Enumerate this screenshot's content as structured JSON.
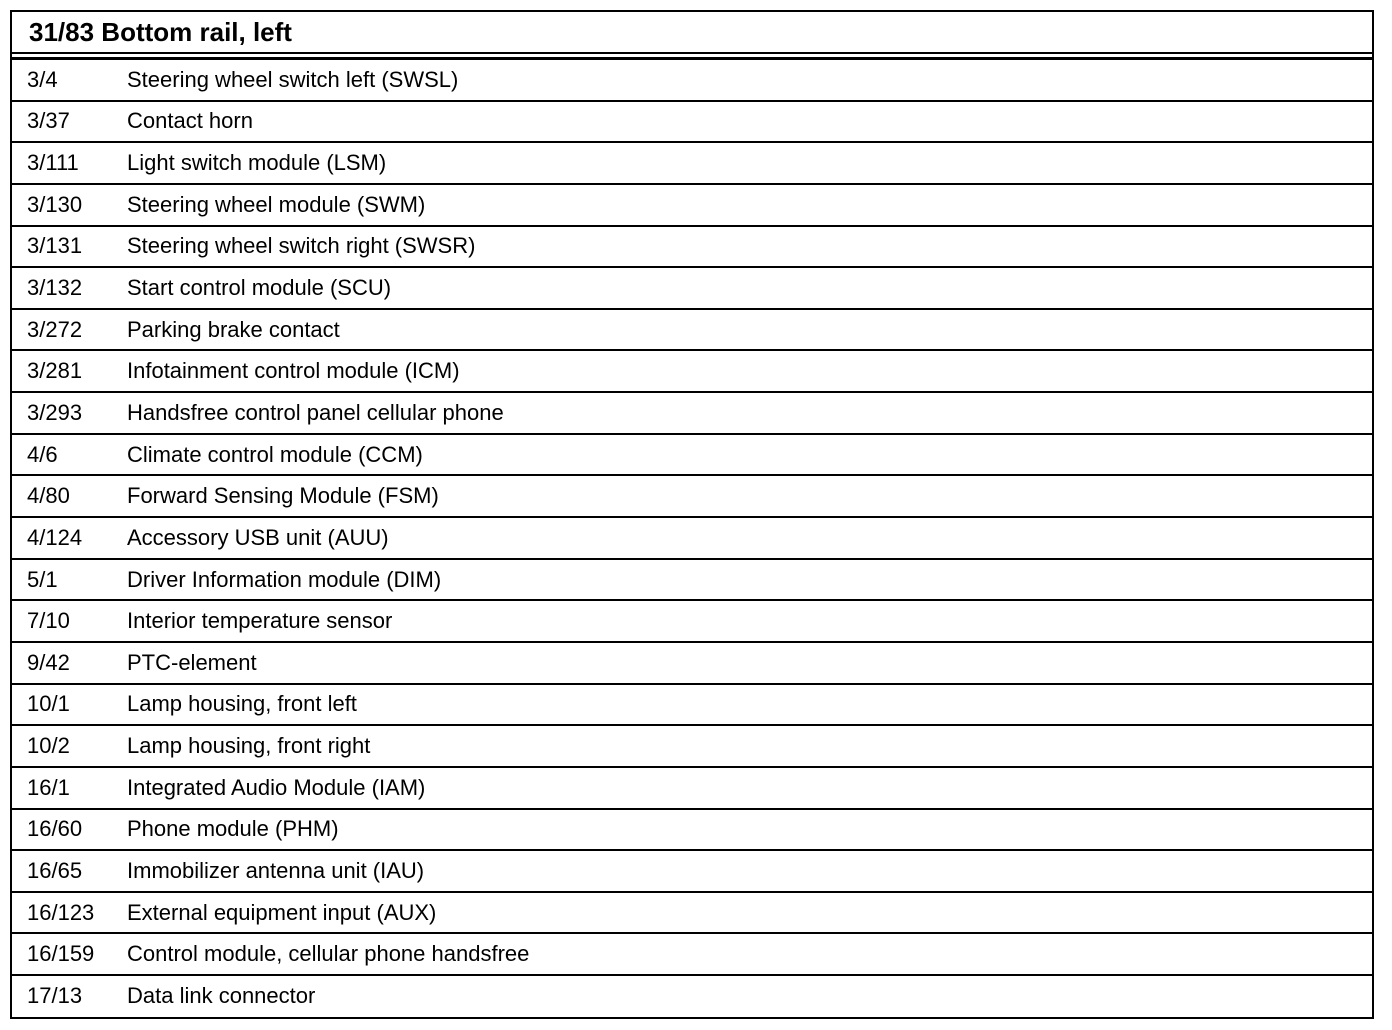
{
  "title": "31/83 Bottom rail, left",
  "rows": [
    {
      "code": "3/4",
      "description": "Steering wheel switch left (SWSL)"
    },
    {
      "code": "3/37",
      "description": "Contact horn"
    },
    {
      "code": "3/111",
      "description": "Light switch module (LSM)"
    },
    {
      "code": "3/130",
      "description": "Steering wheel module (SWM)"
    },
    {
      "code": "3/131",
      "description": "Steering wheel switch right (SWSR)"
    },
    {
      "code": "3/132",
      "description": "Start control module (SCU)"
    },
    {
      "code": "3/272",
      "description": "Parking brake contact"
    },
    {
      "code": "3/281",
      "description": "Infotainment control module (ICM)"
    },
    {
      "code": "3/293",
      "description": "Handsfree control panel cellular phone"
    },
    {
      "code": "4/6",
      "description": "Climate control module (CCM)"
    },
    {
      "code": "4/80",
      "description": "Forward Sensing Module (FSM)"
    },
    {
      "code": "4/124",
      "description": "Accessory USB unit (AUU)"
    },
    {
      "code": "5/1",
      "description": "Driver Information module (DIM)"
    },
    {
      "code": "7/10",
      "description": "Interior temperature sensor"
    },
    {
      "code": "9/42",
      "description": "PTC-element"
    },
    {
      "code": "10/1",
      "description": "Lamp housing, front left"
    },
    {
      "code": "10/2",
      "description": "Lamp housing, front right"
    },
    {
      "code": "16/1",
      "description": "Integrated Audio Module (IAM)"
    },
    {
      "code": "16/60",
      "description": "Phone module (PHM)"
    },
    {
      "code": "16/65",
      "description": "Immobilizer antenna unit (IAU)"
    },
    {
      "code": "16/123",
      "description": "External equipment input (AUX)"
    },
    {
      "code": "16/159",
      "description": "Control module, cellular phone handsfree"
    },
    {
      "code": "17/13",
      "description": "Data link connector"
    }
  ]
}
